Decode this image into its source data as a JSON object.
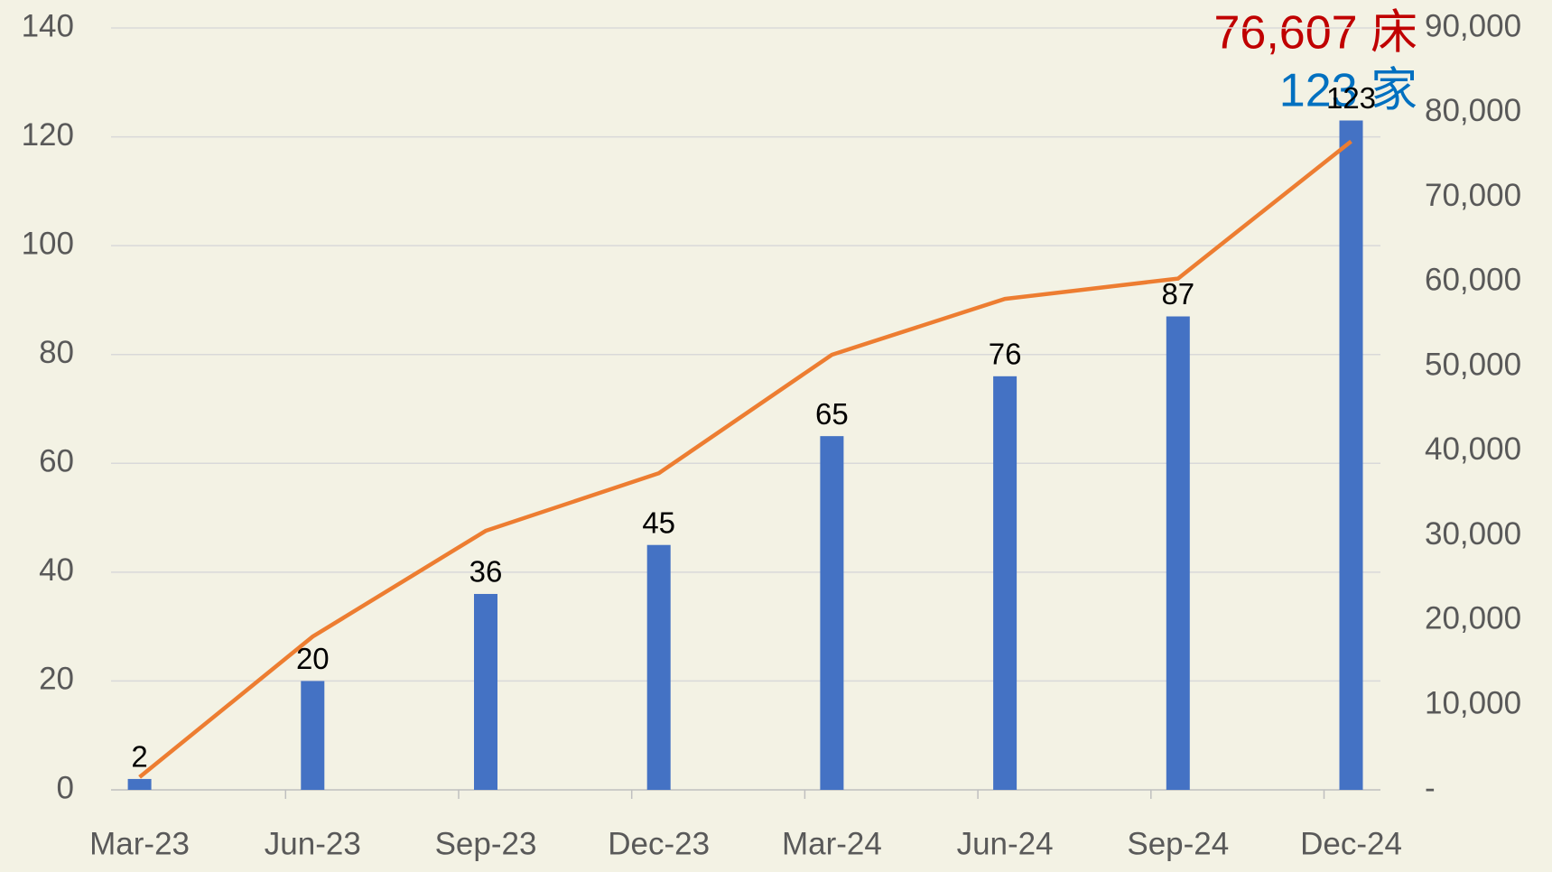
{
  "chart_data": {
    "type": "bar-line",
    "categories": [
      "Mar-23",
      "Jun-23",
      "Sep-23",
      "Dec-23",
      "Mar-24",
      "Jun-24",
      "Sep-24",
      "Dec-24"
    ],
    "series": [
      {
        "color": "#4472c4",
        "values": [
          2,
          20,
          36,
          45,
          65,
          76,
          87,
          123
        ]
      },
      {
        "color": "#ed7d31",
        "axis": "y2",
        "values": [
          1500,
          18100,
          30600,
          37400,
          51400,
          58000,
          60400,
          76607
        ]
      }
    ],
    "ylim": [
      0,
      140
    ],
    "yticks": [
      0,
      20,
      40,
      60,
      80,
      100,
      120,
      140
    ],
    "y2lim": [
      0,
      90000
    ],
    "y2ticks": [
      {
        "value": 0,
        "label": "-"
      },
      {
        "value": 10000,
        "label": "10,000"
      },
      {
        "value": 20000,
        "label": "20,000"
      },
      {
        "value": 30000,
        "label": "30,000"
      },
      {
        "value": 40000,
        "label": "40,000"
      },
      {
        "value": 50000,
        "label": "50,000"
      },
      {
        "value": 60000,
        "label": "60,000"
      },
      {
        "value": 70000,
        "label": "70,000"
      },
      {
        "value": 80000,
        "label": "80,000"
      },
      {
        "value": 90000,
        "label": "90,000"
      }
    ],
    "grid": true,
    "annotations": [
      {
        "text": "76,607 床",
        "color": "#c00000"
      },
      {
        "text": "123 家",
        "color": "#0070c0"
      }
    ]
  }
}
